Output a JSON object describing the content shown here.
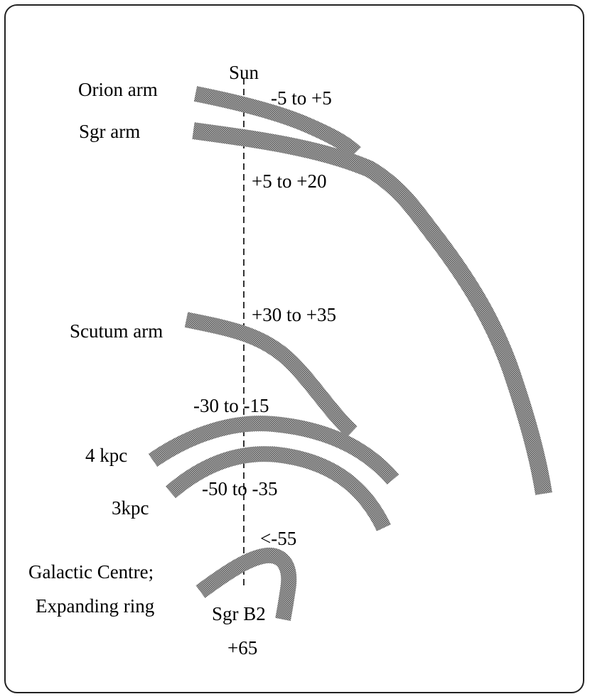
{
  "colors": {
    "arm_fill": "#9a9a9a",
    "arm_edge": "#6e6e6e",
    "text": "#000000",
    "frame": "#222222",
    "sun_line": "#000000"
  },
  "labels": {
    "sun": "Sun",
    "orion_arm": "Orion arm",
    "orion_velocity": "-5 to +5",
    "sgr_arm": "Sgr arm",
    "sgr_velocity": "+5 to +20",
    "scutum_arm": "Scutum arm",
    "scutum_velocity": "+30 to +35",
    "four_kpc": "4 kpc",
    "four_kpc_velocity": "-30 to -15",
    "three_kpc": "3kpc",
    "three_kpc_velocity": "-50 to -35",
    "galactic_centre_line1": "Galactic Centre;",
    "galactic_centre_line2": "Expanding ring",
    "gc_velocity_top": "<-55",
    "sgr_b2": "Sgr B2",
    "sgr_b2_velocity": "+65"
  }
}
